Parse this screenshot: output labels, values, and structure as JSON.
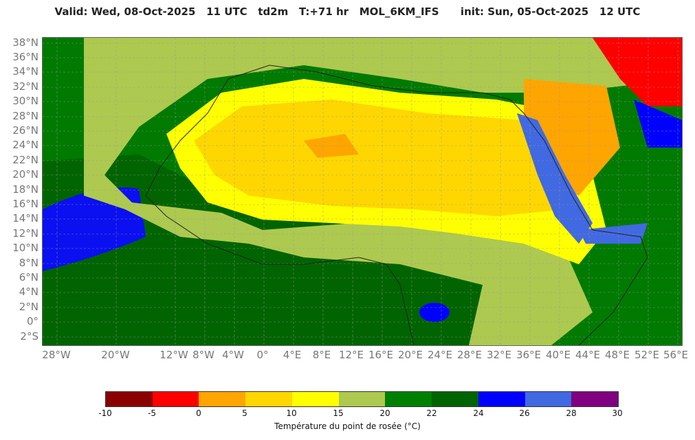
{
  "header": {
    "title": "Valid: Wed, 08-Oct-2025   11 UTC   td2m   T:+71 hr   MOL_6KM_IFS      init: Sun, 05-Oct-2025   12 UTC"
  },
  "map": {
    "lat_labels": [
      "38°N",
      "36°N",
      "34°N",
      "32°N",
      "30°N",
      "28°N",
      "26°N",
      "24°N",
      "22°N",
      "20°N",
      "18°N",
      "16°N",
      "14°N",
      "12°N",
      "10°N",
      "8°N",
      "6°N",
      "4°N",
      "2°N",
      "0°",
      "2°S"
    ],
    "lon_labels": [
      "28°W",
      "20°W",
      "12°W",
      "8°W",
      "4°W",
      "0°",
      "4°E",
      "8°E",
      "12°E",
      "16°E",
      "20°E",
      "24°E",
      "28°E",
      "32°E",
      "36°E",
      "40°E",
      "44°E",
      "48°E",
      "52°E",
      "56°E"
    ]
  },
  "legend": {
    "title": "Température du point de rosée (°C)",
    "ticks": [
      "-10",
      "-5",
      "0",
      "5",
      "10",
      "15",
      "20",
      "22",
      "24",
      "26",
      "28",
      "30"
    ],
    "colors": [
      "#8b0000",
      "#ff0000",
      "#ffa500",
      "#ffd700",
      "#ffff00",
      "#adc94f",
      "#008000",
      "#006400",
      "#0000ff",
      "#4169e1",
      "#800080"
    ]
  }
}
